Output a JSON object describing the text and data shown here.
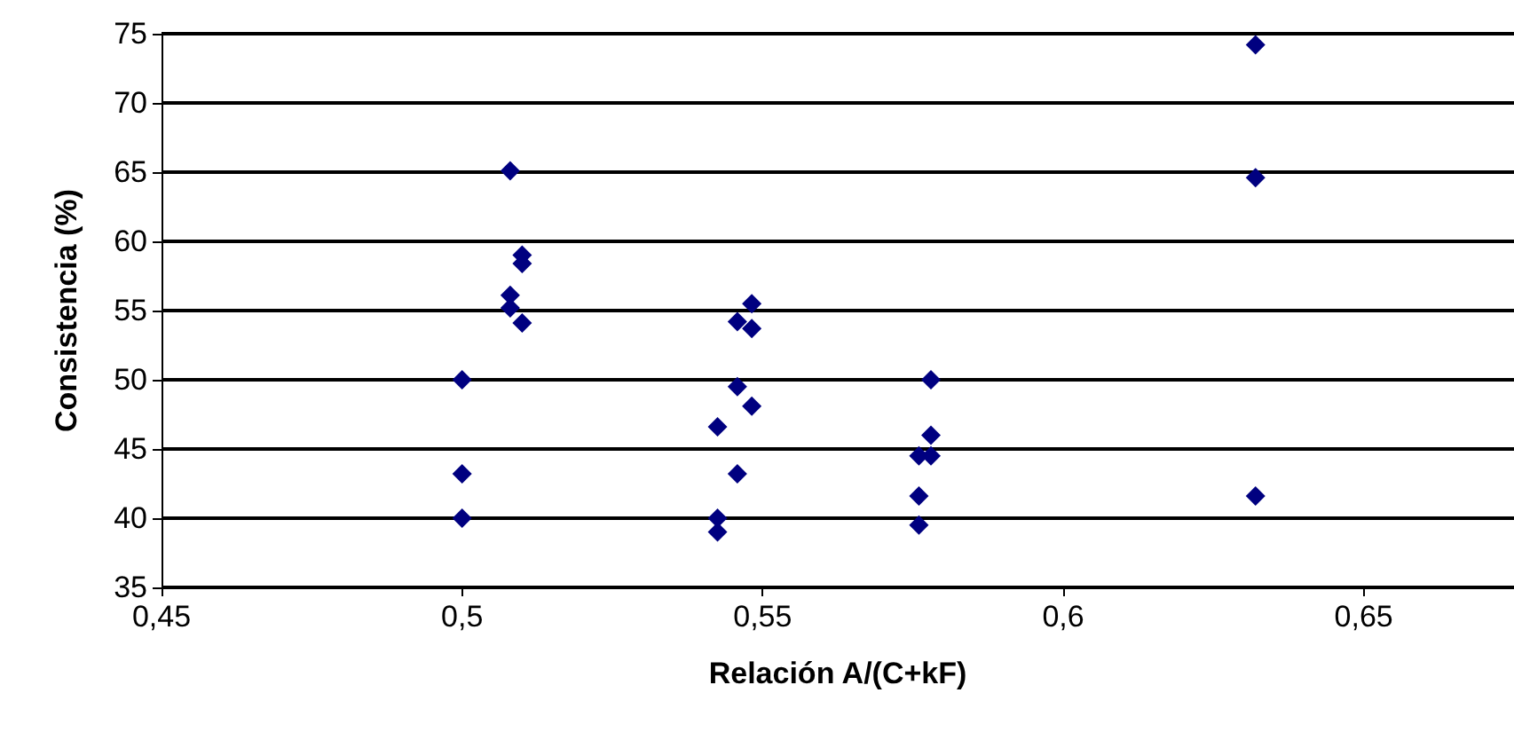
{
  "chart_data": {
    "type": "scatter",
    "xlabel": "Relación A/(C+kF)",
    "ylabel": "Consistencia (%)",
    "xlim": [
      0.45,
      0.675
    ],
    "ylim": [
      35,
      75
    ],
    "xticks": [
      {
        "value": 0.45,
        "label": "0,45"
      },
      {
        "value": 0.5,
        "label": "0,5"
      },
      {
        "value": 0.55,
        "label": "0,55"
      },
      {
        "value": 0.6,
        "label": "0,6"
      },
      {
        "value": 0.65,
        "label": "0,65"
      }
    ],
    "yticks": [
      35,
      40,
      45,
      50,
      55,
      60,
      65,
      70,
      75
    ],
    "grid": "y",
    "marker": "diamond",
    "series": [
      {
        "color": "#000080",
        "x": [
          0.5,
          0.5,
          0.5,
          0.508,
          0.508,
          0.508,
          0.51,
          0.51,
          0.51,
          0.5425,
          0.5425,
          0.5425,
          0.5458,
          0.5458,
          0.5458,
          0.5482,
          0.5482,
          0.5482,
          0.576,
          0.576,
          0.576,
          0.578,
          0.578,
          0.578,
          0.632,
          0.632,
          0.632
        ],
        "values": [
          50,
          43.2,
          40,
          65.1,
          56.1,
          55.2,
          59,
          58.4,
          54.1,
          46.6,
          40,
          39,
          54.2,
          49.5,
          43.2,
          55.5,
          53.7,
          48.1,
          44.5,
          41.6,
          39.5,
          50,
          46,
          44.5,
          74.2,
          64.6,
          41.6
        ]
      }
    ]
  }
}
